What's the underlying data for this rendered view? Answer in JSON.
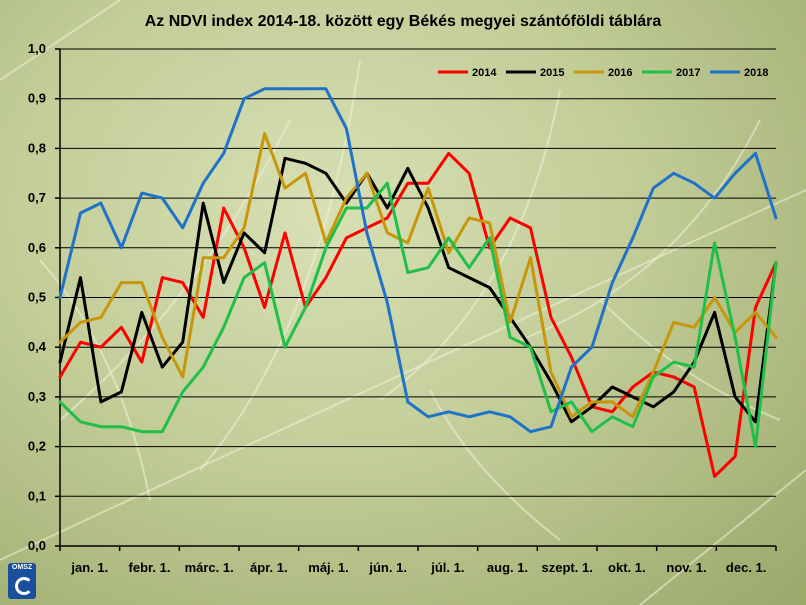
{
  "chart_data": {
    "type": "line",
    "title": "Az NDVI index 2014-18. között egy Békés megyei szántóföldi táblára",
    "ylim": [
      0,
      1.0
    ],
    "y_ticks": [
      "0,0",
      "0,1",
      "0,2",
      "0,3",
      "0,4",
      "0,5",
      "0,6",
      "0,7",
      "0,8",
      "0,9",
      "1,0"
    ],
    "x_tick_labels": [
      "jan. 1.",
      "febr. 1.",
      "márc. 1.",
      "ápr. 1.",
      "máj. 1.",
      "jún. 1.",
      "júl. 1.",
      "aug. 1.",
      "szept. 1.",
      "okt. 1.",
      "nov. 1.",
      "dec. 1."
    ],
    "grid": true,
    "legend_position": "top-right",
    "series": [
      {
        "name": "2014",
        "color": "#ff0000",
        "values": [
          0.34,
          0.41,
          0.4,
          0.44,
          0.37,
          0.54,
          0.53,
          0.46,
          0.68,
          0.6,
          0.48,
          0.63,
          0.48,
          0.54,
          0.62,
          0.64,
          0.66,
          0.73,
          0.73,
          0.79,
          0.75,
          0.6,
          0.66,
          0.64,
          0.46,
          0.38,
          0.28,
          0.27,
          0.32,
          0.35,
          0.34,
          0.32,
          0.14,
          0.18,
          0.48,
          0.57
        ]
      },
      {
        "name": "2015",
        "color": "#000000",
        "values": [
          0.37,
          0.54,
          0.29,
          0.31,
          0.47,
          0.36,
          0.41,
          0.69,
          0.53,
          0.63,
          0.59,
          0.78,
          0.77,
          0.75,
          0.69,
          0.75,
          0.68,
          0.76,
          0.68,
          0.56,
          0.54,
          0.52,
          0.46,
          0.4,
          0.33,
          0.25,
          0.28,
          0.32,
          0.3,
          0.28,
          0.31,
          0.37,
          0.47,
          0.3,
          0.25,
          0.57
        ]
      },
      {
        "name": "2016",
        "color": "#c8960a",
        "values": [
          0.41,
          0.45,
          0.46,
          0.53,
          0.53,
          0.42,
          0.34,
          0.58,
          0.58,
          0.64,
          0.83,
          0.72,
          0.75,
          0.61,
          0.7,
          0.75,
          0.63,
          0.61,
          0.72,
          0.59,
          0.66,
          0.65,
          0.45,
          0.58,
          0.35,
          0.26,
          0.29,
          0.29,
          0.26,
          0.35,
          0.45,
          0.44,
          0.5,
          0.43,
          0.47,
          0.42
        ]
      },
      {
        "name": "2017",
        "color": "#1fbf4a",
        "values": [
          0.29,
          0.25,
          0.24,
          0.24,
          0.23,
          0.23,
          0.31,
          0.36,
          0.44,
          0.54,
          0.57,
          0.4,
          0.48,
          0.6,
          0.68,
          0.68,
          0.73,
          0.55,
          0.56,
          0.62,
          0.56,
          0.62,
          0.42,
          0.4,
          0.27,
          0.29,
          0.23,
          0.26,
          0.24,
          0.34,
          0.37,
          0.36,
          0.61,
          0.42,
          0.2,
          0.57
        ]
      },
      {
        "name": "2018",
        "color": "#1e73c8",
        "values": [
          0.5,
          0.67,
          0.69,
          0.6,
          0.71,
          0.7,
          0.64,
          0.73,
          0.79,
          0.9,
          0.92,
          0.92,
          0.92,
          0.92,
          0.84,
          0.63,
          0.49,
          0.29,
          0.26,
          0.27,
          0.26,
          0.27,
          0.26,
          0.23,
          0.24,
          0.36,
          0.4,
          0.53,
          0.62,
          0.72,
          0.75,
          0.73,
          0.7,
          0.75,
          0.79,
          0.66
        ]
      }
    ]
  },
  "logo_text": "OMSZ"
}
